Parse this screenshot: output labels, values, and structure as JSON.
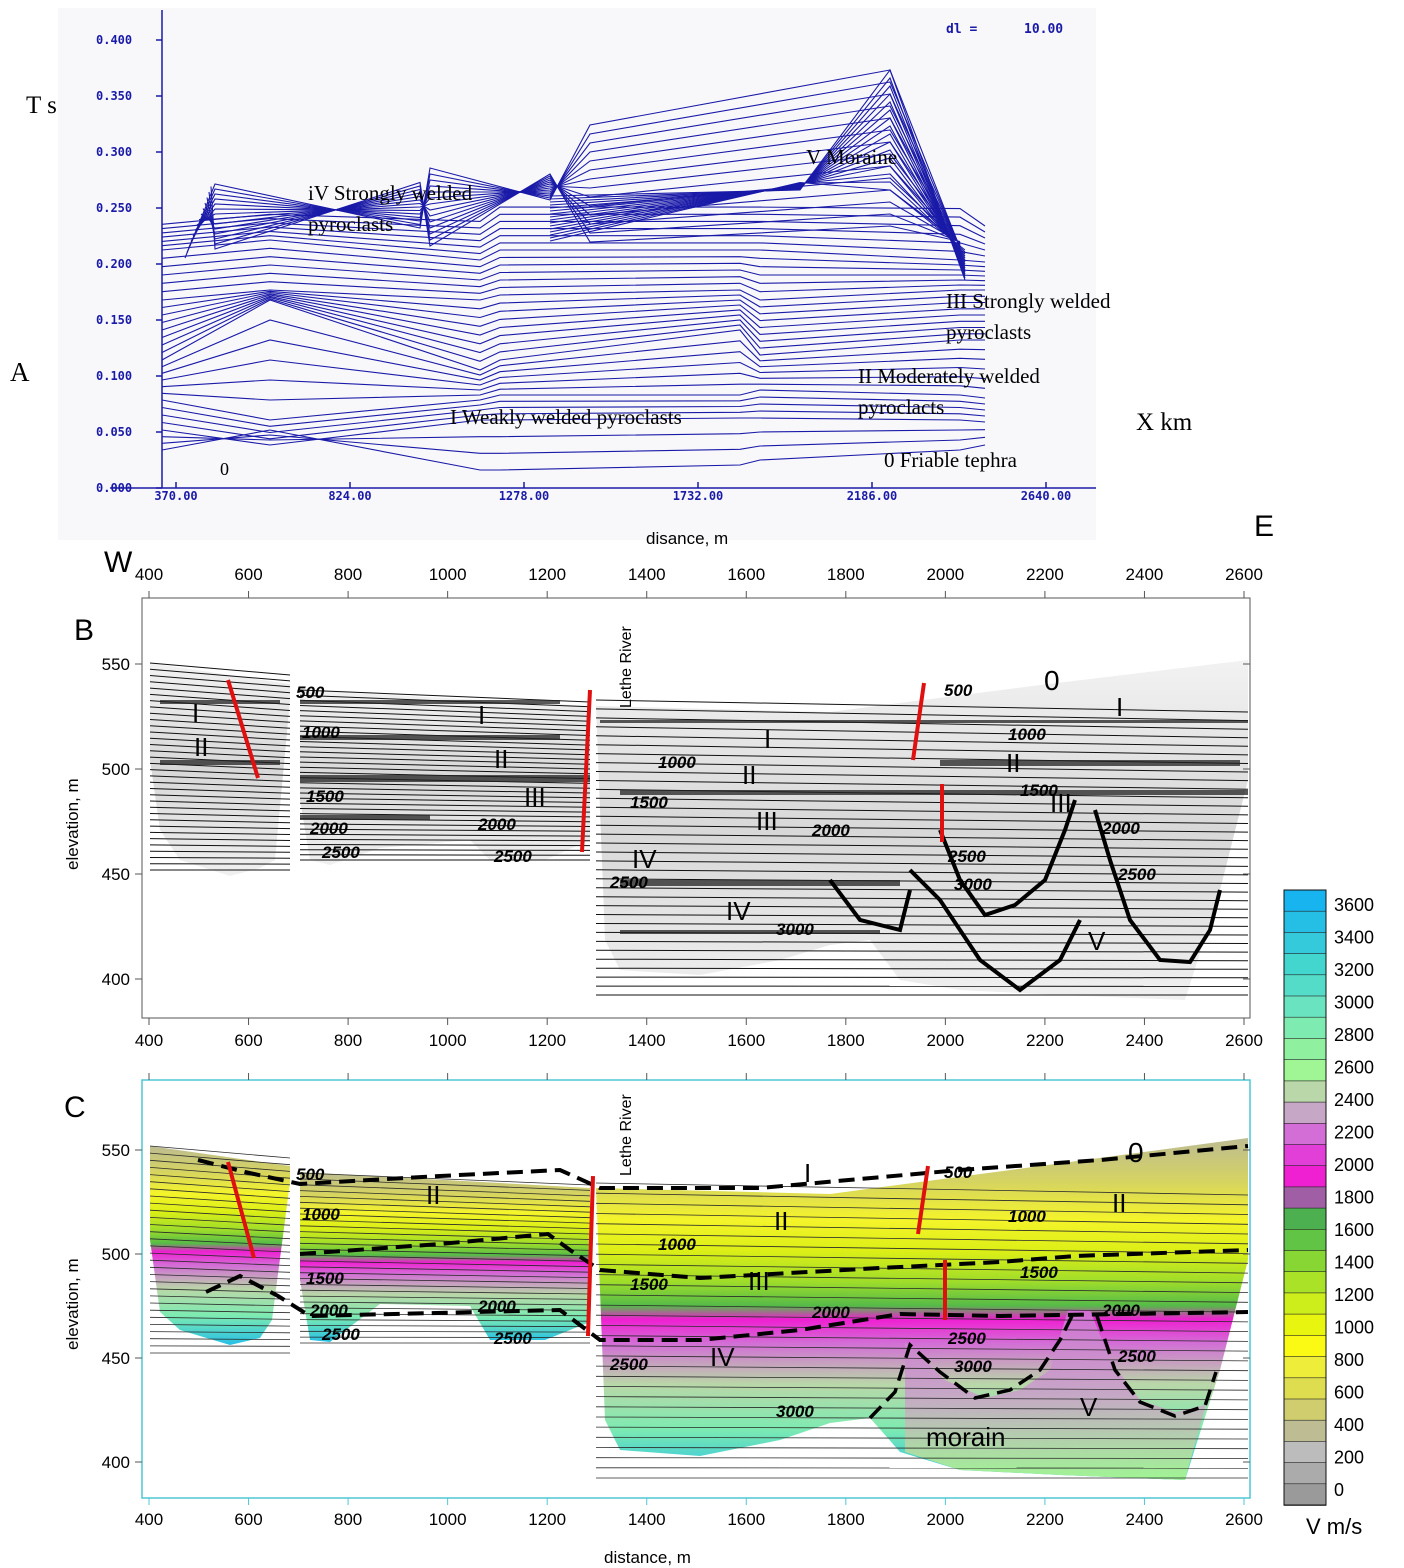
{
  "panel_a": {
    "letter": "A",
    "y_title": "T s",
    "x_title": "X km",
    "bottom_label": "disance, m",
    "dl_label": "dl =",
    "dl_value": "10.00",
    "x_ticks": [
      "370.00",
      "824.00",
      "1278.00",
      "1732.00",
      "2186.00",
      "2640.00"
    ],
    "y_ticks": [
      "0.000",
      "0.050",
      "0.100",
      "0.150",
      "0.200",
      "0.250",
      "0.300",
      "0.350",
      "0.400"
    ],
    "units": {
      "v": "V  Moraine",
      "iv_1": "iV Strongly welded",
      "iv_2": "pyroclasts",
      "iii_1": "III Strongly welded",
      "iii_2": "pyroclasts",
      "ii_1": "II Moderately welded",
      "ii_2": "pyroclacts",
      "i": "I Weakly welded pyroclasts",
      "zero": "0 Friable tephra",
      "zero_short": "0"
    }
  },
  "panels_bc": {
    "west": "W",
    "east": "E",
    "letter_b": "B",
    "letter_c": "C",
    "river": "Lethe River",
    "y_axis_title": "elevation, m",
    "x_axis_title": "distance, m",
    "x_ticks": [
      "400",
      "600",
      "800",
      "1000",
      "1200",
      "1400",
      "1600",
      "1800",
      "2000",
      "2200",
      "2400",
      "2600"
    ],
    "y_ticks": [
      "400",
      "450",
      "500",
      "550"
    ],
    "labels_b": {
      "c500a": "500",
      "c1000a": "1000",
      "c1500a": "1500",
      "c2000a": "2000",
      "c2500a": "2500",
      "c2000b": "2000",
      "c2500b": "2500",
      "c1000b": "1000",
      "c1500b": "1500",
      "c2500c": "2500",
      "c2000c": "2000",
      "c3000a": "3000",
      "c500b": "500",
      "c1000c": "1000",
      "c1500c": "1500",
      "c2000d": "2000",
      "c2500d": "2500",
      "c3000b": "3000",
      "c2500e": "2500",
      "u_i1": "I",
      "u_ii1": "II",
      "u_i2": "I",
      "u_ii2": "II",
      "u_iii1": "III",
      "u_i3": "I",
      "u_ii3": "II",
      "u_iii2": "III",
      "u_iv1": "IV",
      "u_iv2": "IV",
      "u_0": "0",
      "u_i4": "I",
      "u_ii4": "II",
      "u_iii3": "III",
      "u_v": "V"
    },
    "labels_c": {
      "c500a": "500",
      "c1000a": "1000",
      "c1500a": "1500",
      "c2000a": "2000",
      "c2500a": "2500",
      "c2000b": "2000",
      "c2500b": "2500",
      "c1000b": "1000",
      "c1500b": "1500",
      "c2000c": "2000",
      "c2500c": "2500",
      "c3000a": "3000",
      "c500b": "500",
      "c1000c": "1000",
      "c1500c": "1500",
      "c2000d": "2000",
      "c2500d": "2500",
      "c3000b": "3000",
      "c2500e": "2500",
      "u_ii1": "II",
      "u_i": "I",
      "u_ii2": "II",
      "u_iii": "III",
      "u_iv": "IV",
      "u_0": "0",
      "u_ii3": "II",
      "u_v": "V",
      "morain": "morain"
    }
  },
  "colorbar": {
    "title": "V m/s",
    "ticks": [
      "0",
      "200",
      "400",
      "600",
      "800",
      "1000",
      "1200",
      "1400",
      "1600",
      "1800",
      "2000",
      "2200",
      "2400",
      "2600",
      "2800",
      "3000",
      "3200",
      "3400",
      "3600"
    ],
    "colors": [
      "#9a9a9a",
      "#ababab",
      "#bcbcbc",
      "#bdbc93",
      "#cfcd6e",
      "#dedc4f",
      "#eeee3a",
      "#fafa14",
      "#e8f50f",
      "#cdee1a",
      "#a9e227",
      "#88d633",
      "#62c444",
      "#4caf50",
      "#a05fa5",
      "#ef1fd2",
      "#e13fd8",
      "#d36ed6",
      "#c6a8c6",
      "#b9d7a8",
      "#a0f594",
      "#8ff19f",
      "#7eebb1",
      "#69e3c0",
      "#55dcc8",
      "#43d6cf",
      "#35c9dc",
      "#25bfe6",
      "#18b4ef"
    ]
  },
  "chart_data": {
    "type": "line",
    "panels": [
      {
        "id": "A",
        "kind": "layered travel-time model",
        "x_range": [
          370,
          2640
        ],
        "y_range": [
          0,
          0.4
        ],
        "layer_boundaries": [
          {
            "name": "0 Friable tephra",
            "x": [
              370,
              580,
              1140,
              1620,
              2070
            ],
            "y": [
              0.03,
              0.02,
              0.02,
              0.04,
              0.035
            ]
          },
          {
            "name": "I Weakly welded pyroclasts",
            "x": [
              370,
              630,
              1140,
              1700,
              2270
            ],
            "y": [
              0.06,
              0.07,
              0.075,
              0.075,
              0.08
            ]
          },
          {
            "name": "II Moderately welded pyroclacts",
            "x": [
              370,
              580,
              1140,
              1700,
              2330
            ],
            "y": [
              0.09,
              0.14,
              0.1,
              0.12,
              0.115
            ]
          },
          {
            "name": "III Strongly welded pyroclasts",
            "x": [
              370,
              580,
              1140,
              1700,
              2380
            ],
            "y": [
              0.17,
              0.18,
              0.175,
              0.2,
              0.19
            ]
          },
          {
            "name": "iV Strongly welded pyroclasts",
            "x": [
              470,
              900,
              1160,
              1420,
              1830,
              2330
            ],
            "y": [
              0.265,
              0.21,
              0.26,
              0.29,
              0.265,
              0.2
            ]
          },
          {
            "name": "V Moraine",
            "x": [
              1160,
              1420,
              2270
            ],
            "y": [
              0.25,
              0.32,
              0.38
            ]
          }
        ]
      },
      {
        "id": "B",
        "kind": "tomographic velocity section (grayscale)",
        "x_range": [
          380,
          2620
        ],
        "y_range": [
          385,
          580
        ],
        "velocity_contours_m_s": [
          500,
          1000,
          1500,
          2000,
          2500,
          3000
        ],
        "units": [
          "0",
          "I",
          "II",
          "III",
          "IV",
          "V"
        ]
      },
      {
        "id": "C",
        "kind": "tomographic velocity section (colour)",
        "x_range": [
          380,
          2620
        ],
        "y_range": [
          385,
          580
        ],
        "velocity_contours_m_s": [
          500,
          1000,
          1500,
          2000,
          2500,
          3000
        ],
        "units": [
          "0",
          "I",
          "II",
          "III",
          "IV",
          "V",
          "morain"
        ],
        "colorbar_range_m_s": [
          0,
          3600
        ]
      }
    ]
  }
}
